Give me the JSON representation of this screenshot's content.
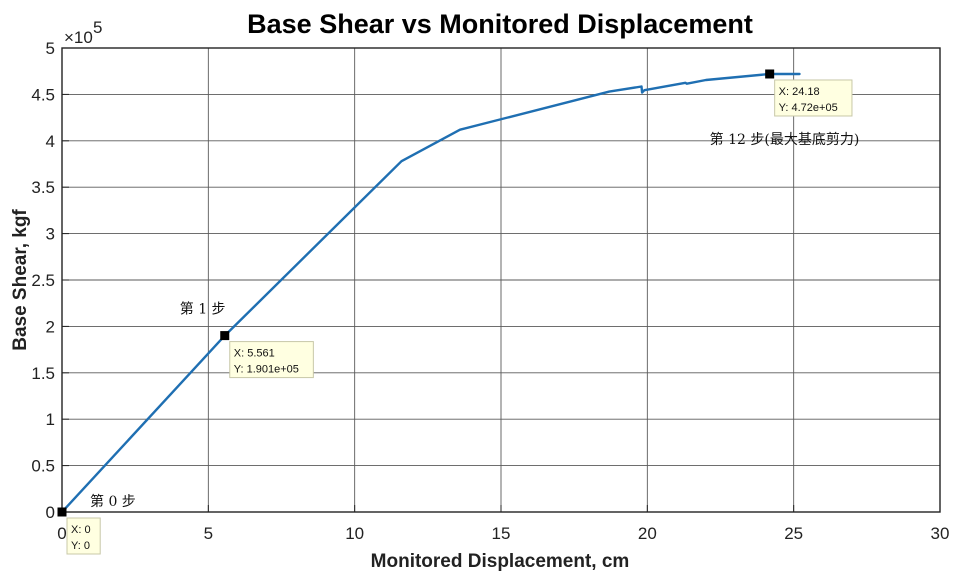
{
  "chart_data": {
    "type": "line",
    "title": "Base Shear vs Monitored Displacement",
    "xlabel": "Monitored Displacement, cm",
    "ylabel": "Base Shear, kgf",
    "y_exponent_label": "×10",
    "y_exponent_power": "5",
    "xlim": [
      0,
      30
    ],
    "ylim": [
      0,
      5
    ],
    "x_ticks": [
      "0",
      "5",
      "10",
      "15",
      "20",
      "25",
      "30"
    ],
    "y_ticks": [
      "0",
      "0.5",
      "1",
      "1.5",
      "2",
      "2.5",
      "3",
      "3.5",
      "4",
      "4.5",
      "5"
    ],
    "grid": true,
    "line_color": "#1f6fb2",
    "series": [
      {
        "x": [
          0,
          5.561,
          11.6,
          13.6,
          18.7,
          19.8,
          19.82,
          19.9,
          21.3,
          21.35,
          22.0,
          24.18,
          25.2
        ],
        "y": [
          0,
          1.901,
          3.78,
          4.12,
          4.53,
          4.585,
          4.52,
          4.545,
          4.625,
          4.615,
          4.655,
          4.72,
          4.72
        ]
      }
    ],
    "datatips": [
      {
        "x": 0,
        "y": 0,
        "x_text": "X: 0",
        "y_text": "Y: 0"
      },
      {
        "x": 5.561,
        "y": 1.901,
        "x_text": "X: 5.561",
        "y_text": "Y: 1.901e+05"
      },
      {
        "x": 24.18,
        "y": 4.72,
        "x_text": "X: 24.18",
        "y_text": "Y: 4.72e+05"
      }
    ],
    "annotations": [
      {
        "text": "第 0 步",
        "x": 0,
        "y": 0
      },
      {
        "text": "第 1 步",
        "x": 5.561,
        "y": 1.901
      },
      {
        "text": "第 12 步(最大基底剪力)",
        "x": 24.18,
        "y": 4.72
      }
    ]
  }
}
